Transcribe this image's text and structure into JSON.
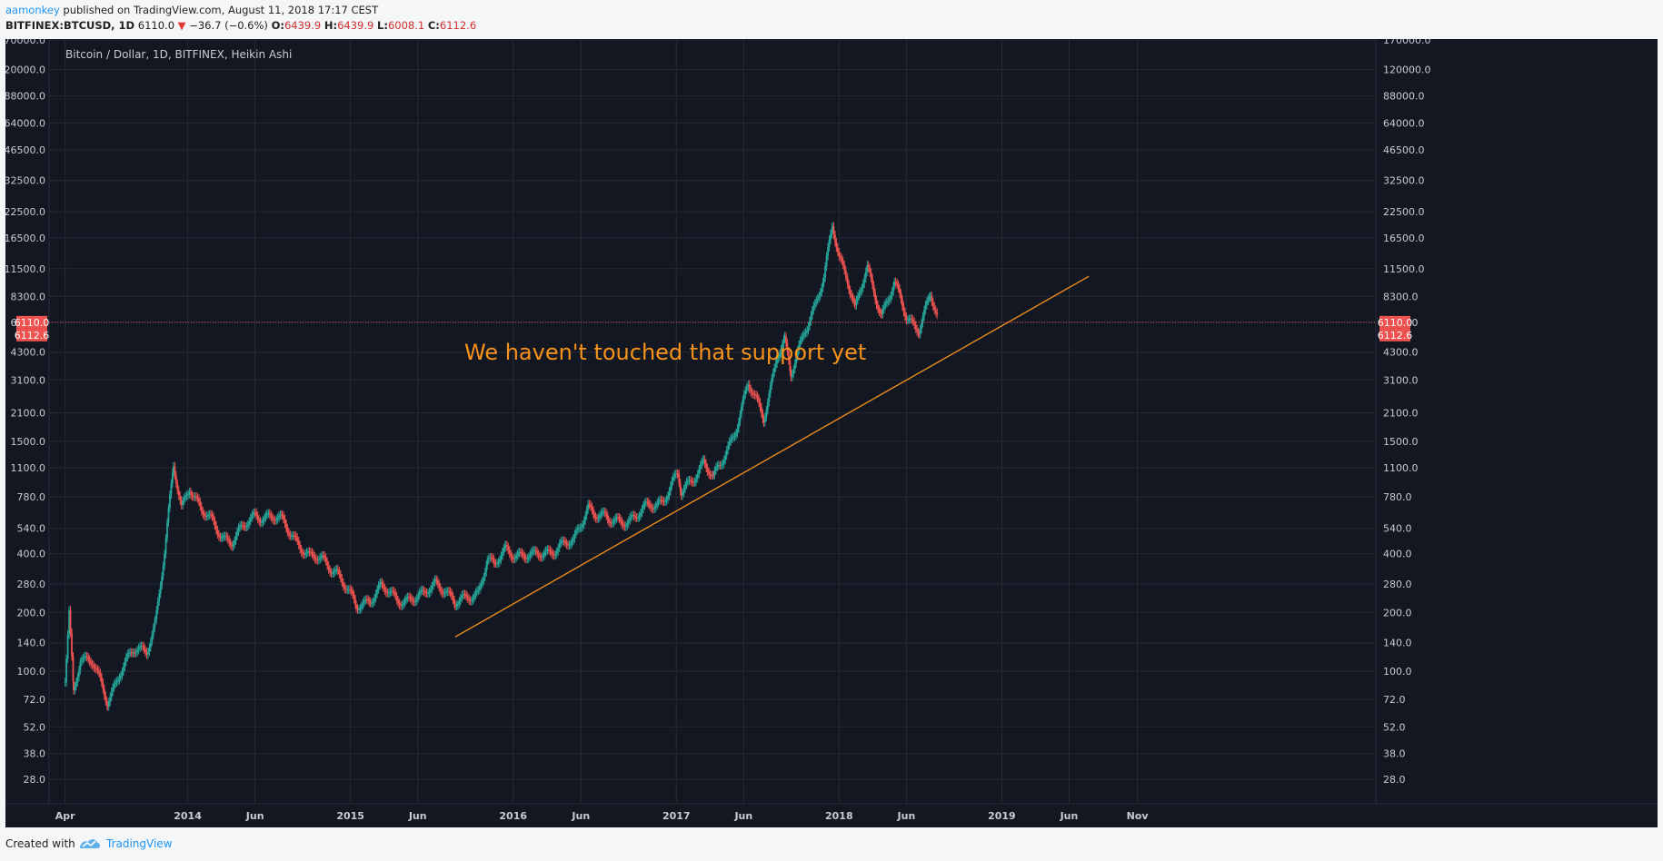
{
  "header": {
    "author": "aamonkey",
    "published_text": "published on TradingView.com, August 11, 2018 17:17 CEST",
    "symbol": "BITFINEX:BTCUSD, 1D",
    "price": "6110.0",
    "change_arrow": "▼",
    "change": "−36.7 (−0.6%)",
    "o_label": "O:",
    "o_value": "6439.9",
    "h_label": "H:",
    "h_value": "6439.9",
    "l_label": "L:",
    "l_value": "6008.1",
    "c_label": "C:",
    "c_value": "6112.6"
  },
  "footer": {
    "created_with": "Created with",
    "brand": "TradingView"
  },
  "chart_data": {
    "type": "line",
    "title": "Bitcoin / Dollar, 1D, BITFINEX, Heikin Ashi",
    "y_scale": "log",
    "ylim": [
      21,
      172000
    ],
    "xlim": [
      "2013-02-24",
      "2021-04-19"
    ],
    "y_ticks": [
      "170000.0",
      "120000.0",
      "88000.0",
      "64000.0",
      "46500.0",
      "32500.0",
      "22500.0",
      "16500.0",
      "11500.0",
      "8300.0",
      "6110.0",
      "4300.0",
      "3100.0",
      "2100.0",
      "1500.0",
      "1100.0",
      "780.0",
      "540.0",
      "400.0",
      "280.0",
      "200.0",
      "140.0",
      "100.0",
      "72.0",
      "52.0",
      "38.0",
      "28.0"
    ],
    "x_ticks": [
      {
        "label": "Apr",
        "date": "2013-04-01"
      },
      {
        "label": "2014",
        "date": "2014-01-01"
      },
      {
        "label": "Jun",
        "date": "2014-06-01"
      },
      {
        "label": "2015",
        "date": "2015-01-01"
      },
      {
        "label": "Jun",
        "date": "2015-06-01"
      },
      {
        "label": "2016",
        "date": "2016-01-01"
      },
      {
        "label": "Jun",
        "date": "2016-06-01"
      },
      {
        "label": "2017",
        "date": "2017-01-01"
      },
      {
        "label": "Jun",
        "date": "2017-06-01"
      },
      {
        "label": "2018",
        "date": "2018-01-01"
      },
      {
        "label": "Jun",
        "date": "2018-06-01"
      },
      {
        "label": "2019",
        "date": "2019-01-01"
      },
      {
        "label": "Jun",
        "date": "2019-06-01"
      },
      {
        "label": "Nov",
        "date": "2019-11-01"
      }
    ],
    "series": [
      {
        "x": [
          "2013-04-01",
          "2013-04-10",
          "2013-04-20",
          "2013-05-05",
          "2013-06-01",
          "2013-07-05",
          "2013-08-01",
          "2013-09-01",
          "2013-10-01",
          "2013-10-20",
          "2013-11-10",
          "2013-11-30",
          "2013-12-18",
          "2014-01-05",
          "2014-02-01",
          "2014-02-25",
          "2014-03-20",
          "2014-04-10",
          "2014-05-01",
          "2014-06-01",
          "2014-07-01",
          "2014-08-01",
          "2014-09-01",
          "2014-10-01",
          "2014-11-01",
          "2014-12-01",
          "2015-01-14",
          "2015-02-15",
          "2015-03-10",
          "2015-04-15",
          "2015-05-15",
          "2015-06-15",
          "2015-07-10",
          "2015-08-01",
          "2015-08-24",
          "2015-09-15",
          "2015-10-15",
          "2015-11-04",
          "2015-11-20",
          "2015-12-15",
          "2016-01-15",
          "2016-02-15",
          "2016-03-15",
          "2016-04-15",
          "2016-05-15",
          "2016-06-17",
          "2016-07-01",
          "2016-08-02",
          "2016-09-01",
          "2016-10-01",
          "2016-11-01",
          "2016-12-01",
          "2017-01-04",
          "2017-01-12",
          "2017-02-15",
          "2017-03-03",
          "2017-03-25",
          "2017-04-15",
          "2017-05-15",
          "2017-06-11",
          "2017-07-16",
          "2017-08-15",
          "2017-09-01",
          "2017-09-15",
          "2017-10-15",
          "2017-11-08",
          "2017-11-28",
          "2017-12-17",
          "2018-01-01",
          "2018-01-17",
          "2018-02-06",
          "2018-03-05",
          "2018-04-06",
          "2018-05-05",
          "2018-06-01",
          "2018-06-29",
          "2018-07-25",
          "2018-08-11"
        ],
        "values": [
          90,
          200,
          80,
          120,
          110,
          70,
          100,
          125,
          130,
          180,
          400,
          1100,
          700,
          900,
          650,
          580,
          500,
          460,
          520,
          640,
          620,
          580,
          480,
          380,
          370,
          330,
          210,
          240,
          270,
          230,
          240,
          240,
          285,
          270,
          220,
          230,
          260,
          380,
          340,
          420,
          400,
          380,
          410,
          440,
          450,
          720,
          650,
          580,
          600,
          610,
          700,
          760,
          1000,
          800,
          1050,
          1200,
          950,
          1200,
          1800,
          2900,
          2000,
          4200,
          4800,
          3200,
          5700,
          7400,
          10000,
          19200,
          13500,
          11000,
          7000,
          11500,
          6800,
          9500,
          6500,
          5800,
          8300,
          6110
        ]
      }
    ],
    "trendline": {
      "from": {
        "x": "2015-08-24",
        "y": 150
      },
      "to": {
        "x": "2019-07-15",
        "y": 10500
      }
    },
    "annotation": "We haven't touched that support yet",
    "last_price": "6110.0",
    "close_price": "6112.6",
    "colors": {
      "background": "#131722",
      "up": "#26a69a",
      "down": "#ef5350",
      "trendline": "#f7931a",
      "price_badge": "#ef5350"
    }
  }
}
